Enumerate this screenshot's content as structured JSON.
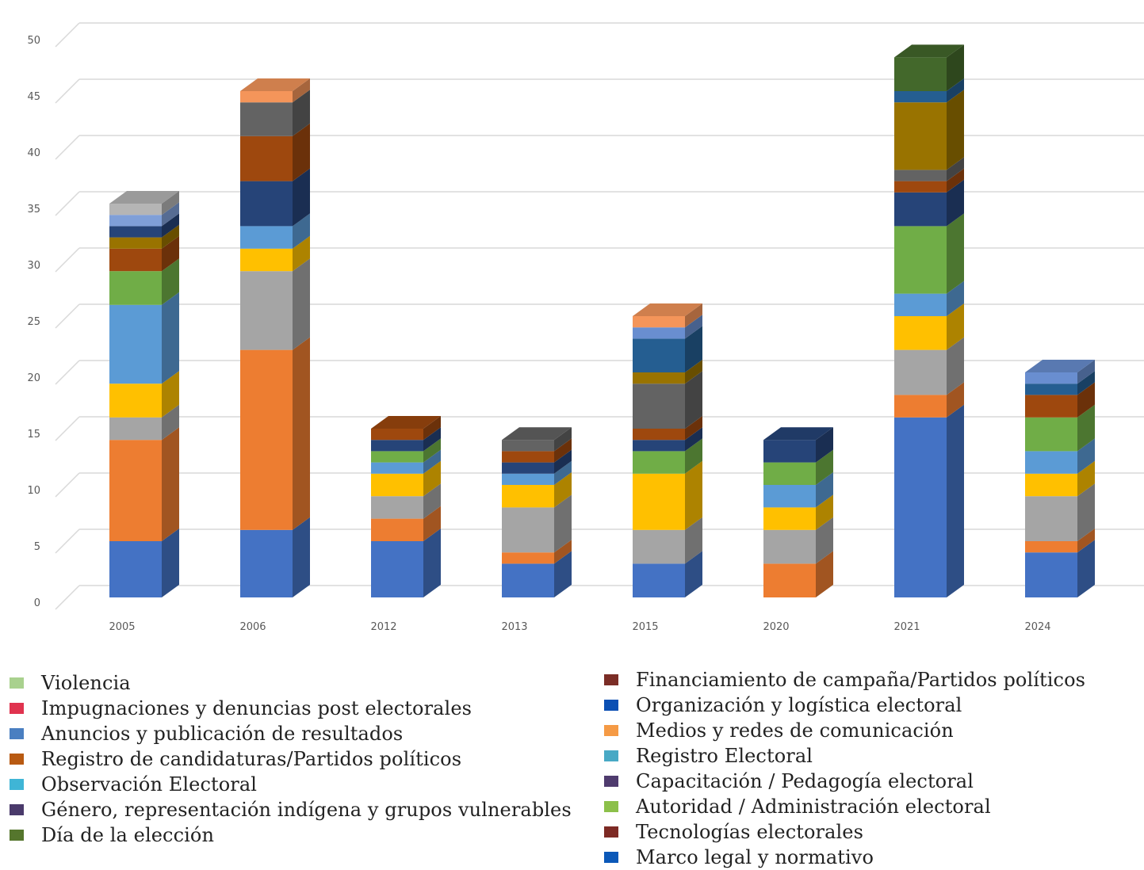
{
  "chart_data": {
    "type": "bar",
    "stacked": true,
    "three_d": true,
    "categories": [
      "2005",
      "2006",
      "2012",
      "2013",
      "2015",
      "2020",
      "2021",
      "2024"
    ],
    "ylim": [
      0,
      50
    ],
    "yticks": [
      0,
      5,
      10,
      15,
      20,
      25,
      30,
      35,
      40,
      45,
      50
    ],
    "grid": true,
    "xlabel": "",
    "ylabel": "",
    "legend_position": "bottom",
    "stacks": [
      [
        5,
        9,
        2,
        3,
        7,
        3,
        2,
        1,
        1,
        1,
        1
      ],
      [
        6,
        16,
        7,
        2,
        2,
        4,
        4,
        3,
        1
      ],
      [
        5,
        2,
        2,
        2,
        1,
        1,
        1,
        1
      ],
      [
        3,
        1,
        4,
        2,
        1,
        1,
        1,
        1
      ],
      [
        3,
        3,
        5,
        2,
        1,
        1,
        4,
        1,
        3,
        1,
        1
      ],
      [
        3,
        3,
        2,
        2,
        2,
        2
      ],
      [
        16,
        2,
        4,
        3,
        2,
        6,
        3,
        1,
        1,
        6,
        1,
        3
      ],
      [
        4,
        1,
        4,
        2,
        2,
        3,
        2,
        1,
        1
      ]
    ],
    "stack_colors": [
      [
        "#4472c4",
        "#ed7d31",
        "#a5a5a5",
        "#ffc000",
        "#5b9bd5",
        "#70ad47",
        "#9e480e",
        "#997300",
        "#264478",
        "#7f9fd8",
        "#b5b5b5"
      ],
      [
        "#4472c4",
        "#ed7d31",
        "#a5a5a5",
        "#ffc000",
        "#5b9bd5",
        "#264478",
        "#9e480e",
        "#636363",
        "#f4955a"
      ],
      [
        "#4472c4",
        "#ed7d31",
        "#a5a5a5",
        "#ffc000",
        "#5b9bd5",
        "#70ad47",
        "#264478",
        "#9e480e"
      ],
      [
        "#4472c4",
        "#ed7d31",
        "#a5a5a5",
        "#ffc000",
        "#5b9bd5",
        "#264478",
        "#9e480e",
        "#636363"
      ],
      [
        "#4472c4",
        "#a5a5a5",
        "#ffc000",
        "#70ad47",
        "#264478",
        "#9e480e",
        "#636363",
        "#997300",
        "#255e91",
        "#698ed0",
        "#f4955a"
      ],
      [
        "#ed7d31",
        "#a5a5a5",
        "#ffc000",
        "#5b9bd5",
        "#70ad47",
        "#264478"
      ],
      [
        "#4472c4",
        "#ed7d31",
        "#a5a5a5",
        "#ffc000",
        "#5b9bd5",
        "#70ad47",
        "#264478",
        "#9e480e",
        "#636363",
        "#997300",
        "#255e91",
        "#43682b"
      ],
      [
        "#4472c4",
        "#ed7d31",
        "#a5a5a5",
        "#ffc000",
        "#5b9bd5",
        "#70ad47",
        "#9e480e",
        "#255e91",
        "#698ed0"
      ]
    ],
    "legend": {
      "left": [
        {
          "label": "Violencia",
          "color": "#a9d18e"
        },
        {
          "label": "Impugnaciones y denuncias post electorales",
          "color": "#e0334f"
        },
        {
          "label": "Anuncios y publicación de resultados",
          "color": "#4a7fc1"
        },
        {
          "label": "Registro de candidaturas/Partidos políticos",
          "color": "#b85a12"
        },
        {
          "label": "Observación Electoral",
          "color": "#3fb5d6"
        },
        {
          "label": "Género, representación indígena y grupos vulnerables",
          "color": "#4a3a6b"
        },
        {
          "label": "Día de la elección",
          "color": "#55762d"
        }
      ],
      "right": [
        {
          "label": "Financiamiento de campaña/Partidos políticos",
          "color": "#7b2d26"
        },
        {
          "label": "Organización y logística electoral",
          "color": "#0b4fb3"
        },
        {
          "label": "Medios y redes de comunicación",
          "color": "#f59a45"
        },
        {
          "label": "Registro Electoral",
          "color": "#48a9c5"
        },
        {
          "label": "Capacitación / Pedagogía electoral",
          "color": "#4f3b6e"
        },
        {
          "label": "Autoridad / Administración electoral",
          "color": "#8cc04a"
        },
        {
          "label": "Tecnologías electorales",
          "color": "#7d2a24"
        },
        {
          "label": "Marco legal y normativo",
          "color": "#0b58b8"
        }
      ]
    }
  }
}
